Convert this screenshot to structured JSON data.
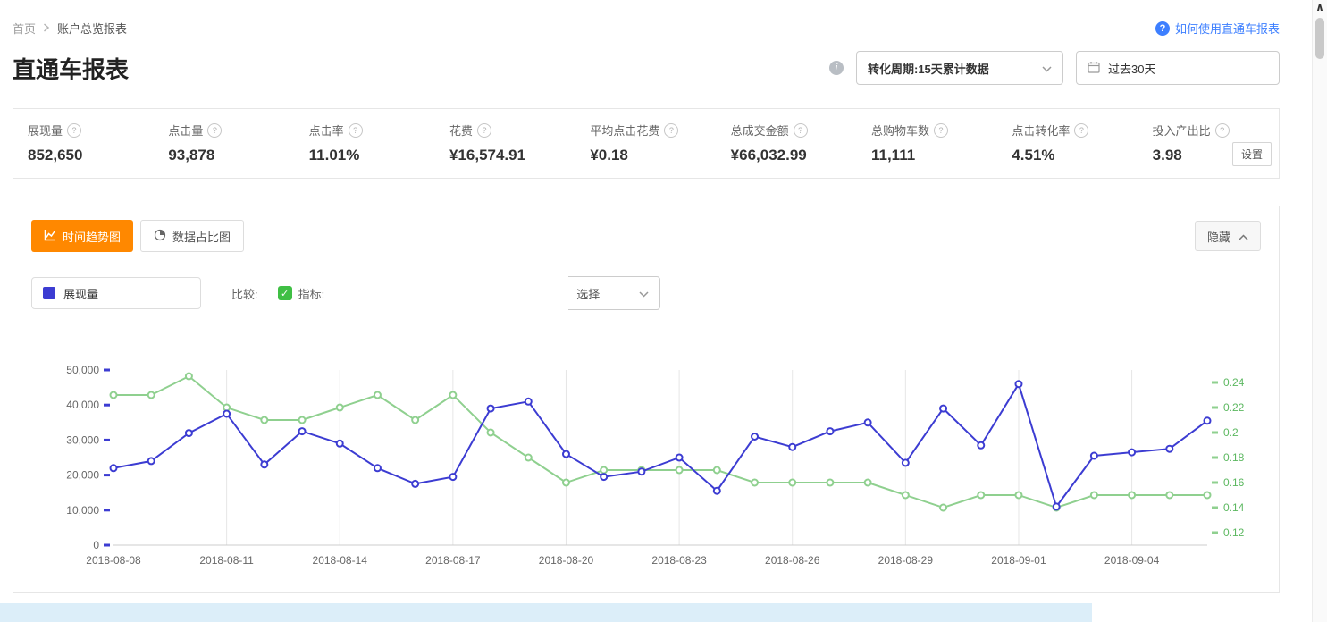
{
  "breadcrumb": {
    "home": "首页",
    "current": "账户总览报表"
  },
  "help_link": {
    "label": "如何使用直通车报表"
  },
  "page": {
    "title": "直通车报表"
  },
  "filters": {
    "conversion_select": "转化周期:15天累计数据",
    "date_range": "过去30天"
  },
  "stats": {
    "items": [
      {
        "label": "展现量",
        "value": "852,650"
      },
      {
        "label": "点击量",
        "value": "93,878"
      },
      {
        "label": "点击率",
        "value": "11.01%"
      },
      {
        "label": "花费",
        "value": "¥16,574.91"
      },
      {
        "label": "平均点击花费",
        "value": "¥0.18"
      },
      {
        "label": "总成交金额",
        "value": "¥66,032.99"
      },
      {
        "label": "总购物车数",
        "value": "11,111"
      },
      {
        "label": "点击转化率",
        "value": "4.51%"
      },
      {
        "label": "投入产出比",
        "value": "3.98"
      }
    ],
    "settings_label": "设置"
  },
  "chart_panel": {
    "tabs": [
      {
        "label": "时间趋势图",
        "active": true
      },
      {
        "label": "数据占比图",
        "active": false
      }
    ],
    "collapse_label": "隐藏",
    "legend_metric": "展现量",
    "compare_label": "比较:",
    "indicator_label": "指标:",
    "select_label": "选择"
  },
  "icons": {
    "question": "?",
    "info": "i",
    "check": "✓",
    "scroll_up": "∧"
  },
  "colors": {
    "accent_orange": "#ff8800",
    "link_blue": "#3d7fff",
    "series_blue": "#3c3cd2",
    "series_green": "#8fd08f",
    "right_axis_label_green": "#5cb860",
    "checkbox_green": "#3fbf44"
  },
  "chart_data": {
    "type": "line",
    "title": "",
    "x": [
      "2018-08-08",
      "2018-08-09",
      "2018-08-10",
      "2018-08-11",
      "2018-08-12",
      "2018-08-13",
      "2018-08-14",
      "2018-08-15",
      "2018-08-16",
      "2018-08-17",
      "2018-08-18",
      "2018-08-19",
      "2018-08-20",
      "2018-08-21",
      "2018-08-22",
      "2018-08-23",
      "2018-08-24",
      "2018-08-25",
      "2018-08-26",
      "2018-08-27",
      "2018-08-28",
      "2018-08-29",
      "2018-08-30",
      "2018-08-31",
      "2018-09-01",
      "2018-09-02",
      "2018-09-03",
      "2018-09-04",
      "2018-09-05",
      "2018-09-06"
    ],
    "x_tick_labels": [
      "2018-08-08",
      "2018-08-11",
      "2018-08-14",
      "2018-08-17",
      "2018-08-20",
      "2018-08-23",
      "2018-08-26",
      "2018-08-29",
      "2018-09-01",
      "2018-09-04"
    ],
    "series": [
      {
        "name": "展现量",
        "axis": "left",
        "color": "#3c3cd2",
        "values": [
          22000,
          24000,
          32000,
          37500,
          23000,
          32500,
          29000,
          22000,
          17500,
          19500,
          39000,
          41000,
          26000,
          19500,
          21000,
          25000,
          15500,
          31000,
          28000,
          32500,
          35000,
          23500,
          39000,
          28500,
          46000,
          11000,
          25500,
          26500,
          27500,
          35500
        ]
      },
      {
        "name": "",
        "axis": "right",
        "color": "#8fd08f",
        "values": [
          0.23,
          0.23,
          0.245,
          0.22,
          0.21,
          0.21,
          0.22,
          0.23,
          0.21,
          0.23,
          0.2,
          0.18,
          0.16,
          0.17,
          0.17,
          0.17,
          0.17,
          0.16,
          0.16,
          0.16,
          0.16,
          0.15,
          0.14,
          0.15,
          0.15,
          0.14,
          0.15,
          0.15,
          0.15,
          0.15
        ]
      }
    ],
    "left_axis": {
      "min": 0,
      "max": 50000,
      "ticks": [
        "0",
        "10,000",
        "20,000",
        "30,000",
        "40,000",
        "50,000"
      ]
    },
    "right_axis": {
      "min": 0.11,
      "max": 0.25,
      "ticks": [
        "0.12",
        "0.14",
        "0.16",
        "0.18",
        "0.2",
        "0.22",
        "0.24"
      ],
      "label_color": "#5cb860"
    },
    "grid": "vertical",
    "legend_position": "top-left"
  }
}
